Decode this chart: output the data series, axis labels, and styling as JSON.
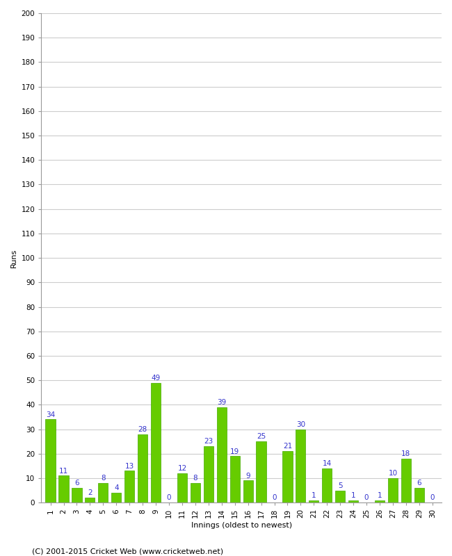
{
  "innings": [
    1,
    2,
    3,
    4,
    5,
    6,
    7,
    8,
    9,
    10,
    11,
    12,
    13,
    14,
    15,
    16,
    17,
    18,
    19,
    20,
    21,
    22,
    23,
    24,
    25,
    26,
    27,
    28,
    29,
    30
  ],
  "runs": [
    34,
    11,
    6,
    2,
    8,
    4,
    13,
    28,
    49,
    0,
    12,
    8,
    23,
    39,
    19,
    9,
    25,
    0,
    21,
    30,
    1,
    14,
    5,
    1,
    0,
    1,
    10,
    18,
    6,
    0
  ],
  "bar_color": "#66cc00",
  "bar_edge_color": "#44aa00",
  "label_color": "#3333cc",
  "xlabel": "Innings (oldest to newest)",
  "ylabel": "Runs",
  "ylim": [
    0,
    200
  ],
  "yticks": [
    0,
    10,
    20,
    30,
    40,
    50,
    60,
    70,
    80,
    90,
    100,
    110,
    120,
    130,
    140,
    150,
    160,
    170,
    180,
    190,
    200
  ],
  "background_color": "#ffffff",
  "grid_color": "#cccccc",
  "footer": "(C) 2001-2015 Cricket Web (www.cricketweb.net)",
  "label_fontsize": 7.5,
  "tick_fontsize": 7.5,
  "axis_label_fontsize": 8,
  "footer_fontsize": 8
}
